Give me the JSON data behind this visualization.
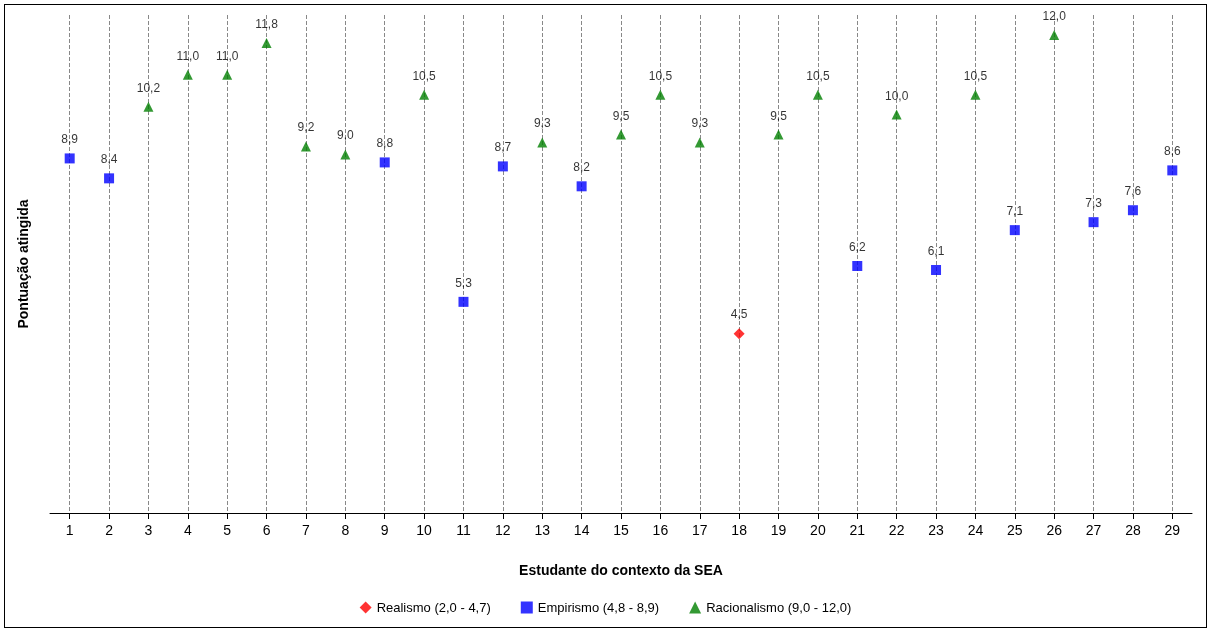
{
  "chart_data": {
    "type": "scatter",
    "xlabel": "Estudante do contexto da SEA",
    "ylabel": "Pontuação atingida",
    "x": [
      1,
      2,
      3,
      4,
      5,
      6,
      7,
      8,
      9,
      10,
      11,
      12,
      13,
      14,
      15,
      16,
      17,
      18,
      19,
      20,
      21,
      22,
      23,
      24,
      25,
      26,
      27,
      28,
      29
    ],
    "xlim": [
      0.5,
      29.5
    ],
    "xticks": [
      1,
      2,
      3,
      4,
      5,
      6,
      7,
      8,
      9,
      10,
      11,
      12,
      13,
      14,
      15,
      16,
      17,
      18,
      19,
      20,
      21,
      22,
      23,
      24,
      25,
      26,
      27,
      28,
      29
    ],
    "ylim": [
      0,
      12.5
    ],
    "tick_labels": "x",
    "grid": "x",
    "legend": "bottom",
    "series": [
      {
        "name": "Realismo (2,0 - 4,7)",
        "color": "#ff0000",
        "marker": "diamond",
        "values": [
          null,
          null,
          null,
          null,
          null,
          null,
          null,
          null,
          null,
          null,
          null,
          null,
          null,
          null,
          null,
          null,
          null,
          4.5,
          null,
          null,
          null,
          null,
          null,
          null,
          null,
          null,
          null,
          null,
          null
        ],
        "value_labels": [
          null,
          null,
          null,
          null,
          null,
          null,
          null,
          null,
          null,
          null,
          null,
          null,
          null,
          null,
          null,
          null,
          null,
          "4,5",
          null,
          null,
          null,
          null,
          null,
          null,
          null,
          null,
          null,
          null,
          null
        ]
      },
      {
        "name": "Empirismo (4,8 - 8,9)",
        "color": "#0000ff",
        "marker": "square",
        "values": [
          8.9,
          8.4,
          null,
          null,
          null,
          null,
          null,
          null,
          8.8,
          null,
          5.3,
          8.7,
          null,
          8.2,
          null,
          null,
          null,
          null,
          null,
          null,
          6.2,
          null,
          6.1,
          null,
          7.1,
          null,
          7.3,
          7.6,
          8.6
        ],
        "value_labels": [
          "8,9",
          "8,4",
          null,
          null,
          null,
          null,
          null,
          null,
          "8,8",
          null,
          "5,3",
          "8,7",
          null,
          "8,2",
          null,
          null,
          null,
          null,
          null,
          null,
          "6,2",
          null,
          "6,1",
          null,
          "7,1",
          null,
          "7,3",
          "7,6",
          "8,6"
        ]
      },
      {
        "name": "Racionalismo (9,0 - 12,0)",
        "color": "#008000",
        "marker": "triangle",
        "values": [
          null,
          null,
          10.2,
          11.0,
          11.0,
          11.8,
          9.2,
          9.0,
          null,
          10.5,
          null,
          null,
          9.3,
          null,
          9.5,
          10.5,
          9.3,
          null,
          9.5,
          10.5,
          null,
          10.0,
          null,
          10.5,
          null,
          12.0,
          null,
          null,
          null
        ],
        "value_labels": [
          null,
          null,
          "10,2",
          "11,0",
          "11,0",
          "11,8",
          "9,2",
          "9,0",
          null,
          "10,5",
          null,
          null,
          "9,3",
          null,
          "9,5",
          "10,5",
          "9,3",
          null,
          "9,5",
          "10,5",
          null,
          "10,0",
          null,
          "10,5",
          null,
          "12,0",
          null,
          null,
          null
        ]
      }
    ]
  }
}
